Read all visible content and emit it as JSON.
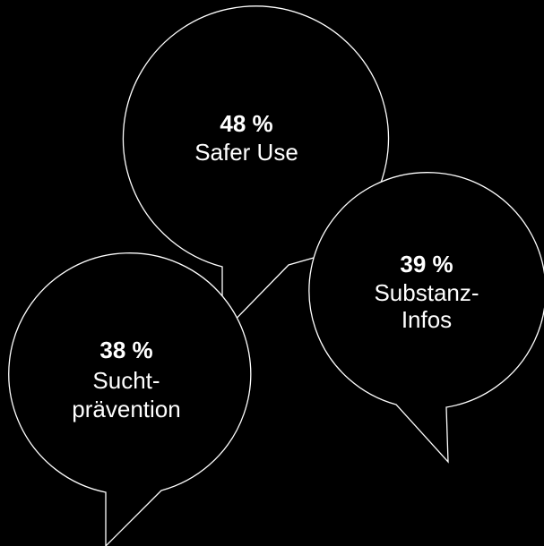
{
  "colors": {
    "background": "#000000",
    "stroke": "#ffffff",
    "text": "#ffffff"
  },
  "bubbles": [
    {
      "percent": "48 %",
      "label": [
        "Safer Use"
      ]
    },
    {
      "percent": "39 %",
      "label": [
        "Substanz-",
        "Infos"
      ]
    },
    {
      "percent": "38 %",
      "label": [
        "Sucht-",
        "prävention"
      ]
    }
  ]
}
